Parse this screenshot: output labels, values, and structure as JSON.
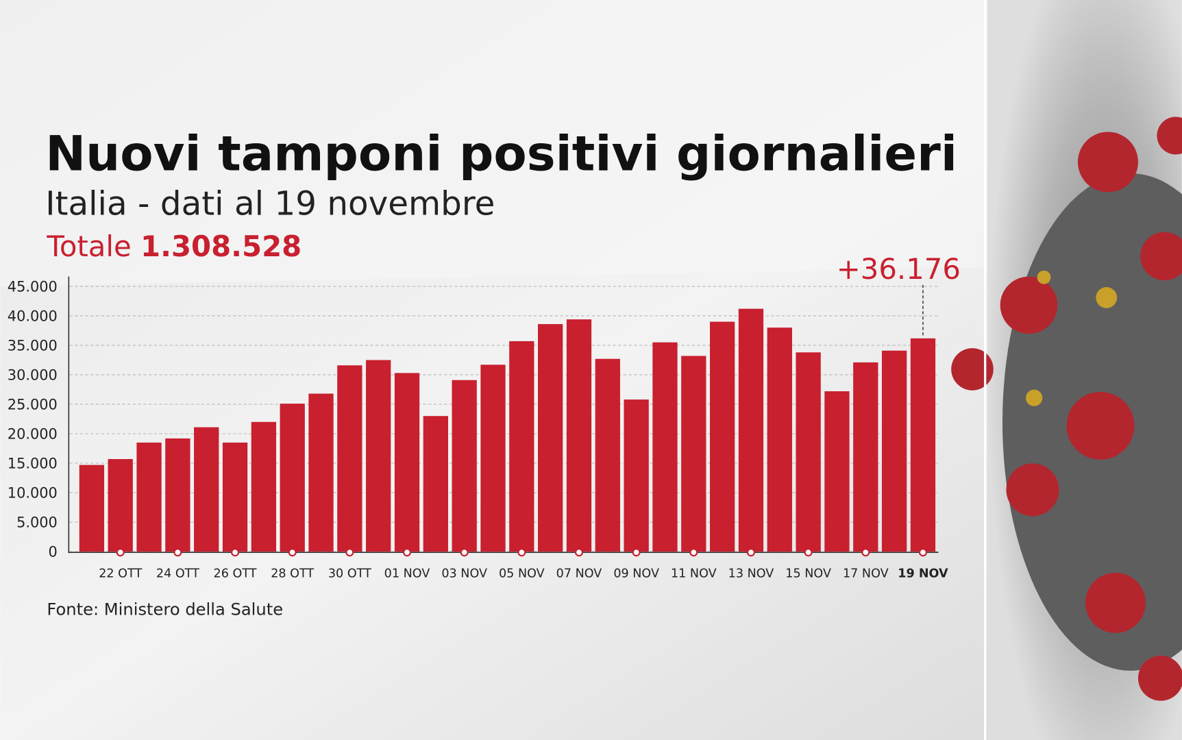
{
  "chart_data": {
    "type": "bar",
    "title": "Nuovi tamponi positivi giornalieri",
    "subtitle": "Italia - dati al 19 novembre",
    "total_label": "Totale",
    "total": "1.308.528",
    "source": "Fonte: Ministero della Salute",
    "categories": [
      null,
      "22 OTT",
      null,
      "24 OTT",
      null,
      "26 OTT",
      null,
      "28 OTT",
      null,
      "30 OTT",
      null,
      "01 NOV",
      null,
      "03 NOV",
      null,
      "05 NOV",
      null,
      "07 NOV",
      null,
      "09 NOV",
      null,
      "11 NOV",
      null,
      "13 NOV",
      null,
      "15 NOV",
      null,
      "17 NOV",
      null,
      "19 NOV"
    ],
    "values": [
      14700,
      15700,
      18500,
      19200,
      21100,
      18500,
      22000,
      25100,
      26800,
      31600,
      32500,
      30300,
      23000,
      29100,
      31700,
      35700,
      38600,
      39400,
      32700,
      25800,
      35500,
      33200,
      39000,
      41200,
      38000,
      33800,
      27200,
      32100,
      34100,
      36176
    ],
    "value_labels": [
      null,
      null,
      null,
      null,
      null,
      null,
      null,
      null,
      null,
      null,
      null,
      null,
      null,
      null,
      null,
      null,
      null,
      null,
      null,
      null,
      null,
      null,
      null,
      null,
      null,
      null,
      null,
      null,
      null,
      "+36.176"
    ],
    "color": "#c8202f",
    "ylim": [
      0,
      45000
    ],
    "yticks": [
      0,
      {
        "value": 5000,
        "label": "5.000"
      },
      {
        "value": 10000,
        "label": "10.000"
      },
      {
        "value": 15000,
        "label": "15.000"
      },
      {
        "value": 20000,
        "label": "20.000"
      },
      {
        "value": 25000,
        "label": "25.000"
      },
      {
        "value": 30000,
        "label": "30.000"
      },
      {
        "value": 35000,
        "label": "35.000"
      },
      {
        "value": 40000,
        "label": "40.000"
      },
      {
        "value": 45000,
        "label": "45.000"
      }
    ],
    "grid": true
  }
}
